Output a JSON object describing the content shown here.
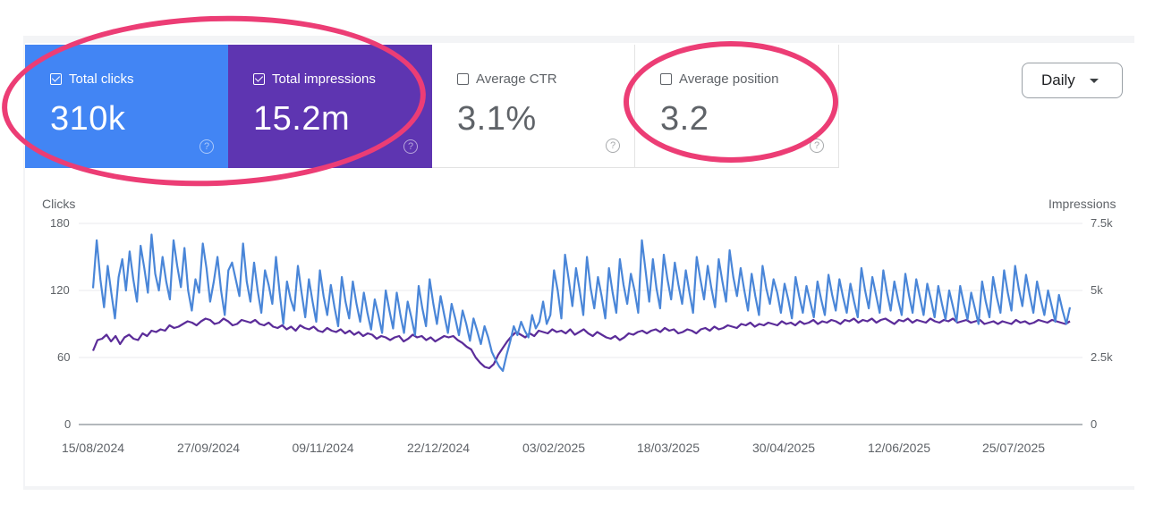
{
  "metrics": [
    {
      "label": "Total clicks",
      "value": "310k",
      "checked": true,
      "color": "#4285f4"
    },
    {
      "label": "Total impressions",
      "value": "15.2m",
      "checked": true,
      "color": "#5e35b1"
    },
    {
      "label": "Average CTR",
      "value": "3.1%",
      "checked": false
    },
    {
      "label": "Average position",
      "value": "3.2",
      "checked": false
    }
  ],
  "help_glyph": "?",
  "period_select": {
    "value": "Daily"
  },
  "chart_data": {
    "type": "line",
    "left_axis_label": "Clicks",
    "right_axis_label": "Impressions",
    "left_ticks": [
      "180",
      "120",
      "60",
      "0"
    ],
    "right_ticks": [
      "7.5k",
      "5k",
      "2.5k",
      "0"
    ],
    "left_range": [
      0,
      180
    ],
    "right_range": [
      0,
      7500
    ],
    "x_labels": [
      "15/08/2024",
      "27/09/2024",
      "09/11/2024",
      "22/12/2024",
      "03/02/2025",
      "18/03/2025",
      "30/04/2025",
      "12/06/2025",
      "25/07/2025"
    ],
    "series": [
      {
        "name": "Total clicks",
        "axis": "left",
        "color": "#4a86d8",
        "values": [
          122,
          165,
          130,
          105,
          142,
          118,
          95,
          132,
          148,
          120,
          155,
          130,
          110,
          160,
          140,
          118,
          170,
          135,
          120,
          150,
          128,
          112,
          165,
          142,
          123,
          158,
          120,
          102,
          130,
          118,
          162,
          140,
          110,
          128,
          150,
          120,
          98,
          138,
          145,
          130,
          115,
          162,
          128,
          110,
          145,
          120,
          100,
          138,
          125,
          108,
          150,
          118,
          90,
          128,
          112,
          102,
          142,
          118,
          96,
          130,
          110,
          92,
          138,
          115,
          98,
          125,
          105,
          88,
          132,
          110,
          95,
          128,
          108,
          92,
          118,
          100,
          85,
          112,
          98,
          82,
          120,
          102,
          86,
          118,
          98,
          82,
          110,
          96,
          80,
          124,
          104,
          88,
          130,
          108,
          90,
          115,
          98,
          82,
          108,
          95,
          80,
          102,
          90,
          75,
          95,
          84,
          72,
          88,
          78,
          65,
          58,
          52,
          48,
          62,
          74,
          88,
          80,
          92,
          84,
          78,
          98,
          86,
          92,
          110,
          90,
          98,
          138,
          120,
          95,
          152,
          130,
          106,
          140,
          120,
          98,
          150,
          122,
          104,
          132,
          115,
          95,
          140,
          118,
          100,
          148,
          125,
          108,
          135,
          120,
          100,
          165,
          138,
          110,
          148,
          122,
          104,
          152,
          130,
          112,
          145,
          125,
          108,
          138,
          118,
          100,
          150,
          130,
          112,
          142,
          122,
          105,
          148,
          128,
          110,
          156,
          132,
          115,
          140,
          120,
          102,
          135,
          115,
          98,
          142,
          122,
          108,
          130,
          118,
          100,
          126,
          112,
          95,
          132,
          115,
          100,
          124,
          110,
          96,
          128,
          112,
          98,
          134,
          116,
          102,
          130,
          114,
          100,
          126,
          110,
          96,
          140,
          120,
          104,
          132,
          116,
          100,
          138,
          118,
          102,
          128,
          112,
          98,
          135,
          116,
          100,
          130,
          114,
          98,
          126,
          112,
          96,
          124,
          108,
          94,
          120,
          106,
          92,
          124,
          108,
          94,
          118,
          104,
          90,
          128,
          110,
          96,
          132,
          114,
          100,
          138,
          118,
          102,
          142,
          122,
          106,
          134,
          116,
          100,
          128,
          112,
          98,
          120,
          106,
          92,
          116,
          102,
          90,
          105
        ]
      },
      {
        "name": "Total impressions",
        "axis": "right",
        "color": "#5b2c99",
        "values": [
          2750,
          3150,
          3200,
          3350,
          3100,
          3300,
          3000,
          3250,
          3350,
          3200,
          3150,
          3400,
          3300,
          3500,
          3450,
          3550,
          3500,
          3700,
          3600,
          3650,
          3750,
          3850,
          3800,
          3700,
          3850,
          3950,
          3900,
          3750,
          3800,
          3950,
          3850,
          3700,
          3750,
          3900,
          3850,
          3800,
          3900,
          3750,
          3700,
          3800,
          3650,
          3600,
          3700,
          3550,
          3650,
          3500,
          3700,
          3600,
          3550,
          3650,
          3500,
          3450,
          3600,
          3500,
          3450,
          3550,
          3400,
          3500,
          3350,
          3450,
          3300,
          3400,
          3350,
          3200,
          3300,
          3250,
          3150,
          3250,
          3300,
          3100,
          3200,
          3350,
          3250,
          3300,
          3150,
          3250,
          3100,
          3200,
          3300,
          3250,
          3300,
          3150,
          3050,
          2900,
          2800,
          2500,
          2300,
          2150,
          2100,
          2250,
          2600,
          2850,
          3100,
          3300,
          3450,
          3350,
          3250,
          3400,
          3300,
          3500,
          3450,
          3400,
          3550,
          3450,
          3500,
          3400,
          3550,
          3350,
          3450,
          3550,
          3400,
          3300,
          3450,
          3350,
          3250,
          3200,
          3300,
          3150,
          3250,
          3400,
          3350,
          3450,
          3500,
          3400,
          3500,
          3550,
          3450,
          3600,
          3500,
          3550,
          3400,
          3450,
          3550,
          3500,
          3400,
          3550,
          3600,
          3500,
          3650,
          3550,
          3600,
          3700,
          3650,
          3600,
          3750,
          3700,
          3800,
          3650,
          3750,
          3700,
          3800,
          3750,
          3700,
          3850,
          3750,
          3800,
          3700,
          3850,
          3750,
          3800,
          3900,
          3750,
          3850,
          3800,
          3900,
          3850,
          3750,
          3900,
          3850,
          3950,
          3800,
          3900,
          3850,
          3950,
          3800,
          3900,
          3950,
          3850,
          3750,
          3900,
          3850,
          3950,
          3800,
          3900,
          3850,
          3800,
          3950,
          3850,
          3800,
          3900,
          3850,
          3950,
          3800,
          3850,
          3900,
          3800,
          3850,
          3900,
          3750,
          3800,
          3850,
          3750,
          3850,
          3800,
          3750,
          3900,
          3800,
          3850,
          3750,
          3800,
          3900,
          3850,
          3800,
          3900,
          3850,
          3800,
          3750,
          3850
        ]
      }
    ]
  }
}
